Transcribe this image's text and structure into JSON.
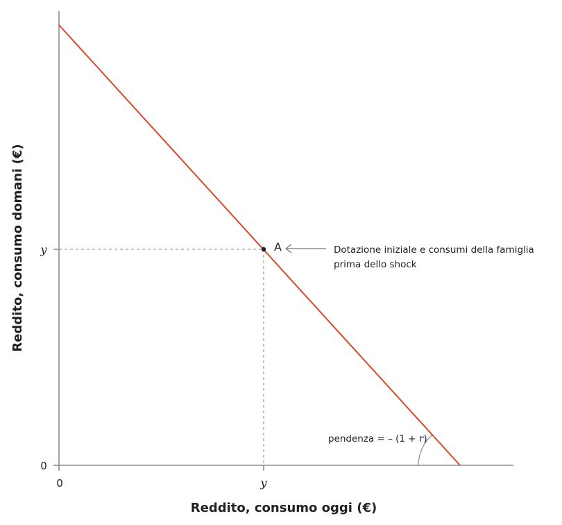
{
  "chart_data": {
    "type": "line",
    "xlabel": "Reddito, consumo oggi (€)",
    "ylabel": "Reddito, consumo domani (€)",
    "x_ticks": [
      "0",
      "y"
    ],
    "y_ticks": [
      "0",
      "y"
    ],
    "xlim": [
      0,
      2.2
    ],
    "ylim": [
      0,
      2.1
    ],
    "series": [
      {
        "x": [
          0,
          1,
          1.96
        ],
        "y": [
          1.96,
          1,
          0
        ],
        "color": "#d9472b"
      }
    ],
    "point": {
      "label": "A",
      "x": 1,
      "y": 1
    },
    "annotation_endowment_line1": "Dotazione iniziale e consumi della famiglia",
    "annotation_endowment_line2": "prima dello shock",
    "slope_label_prefix": "pendenza = – (1 + ",
    "slope_label_r": "r",
    "slope_label_suffix": ")",
    "grid": false
  }
}
